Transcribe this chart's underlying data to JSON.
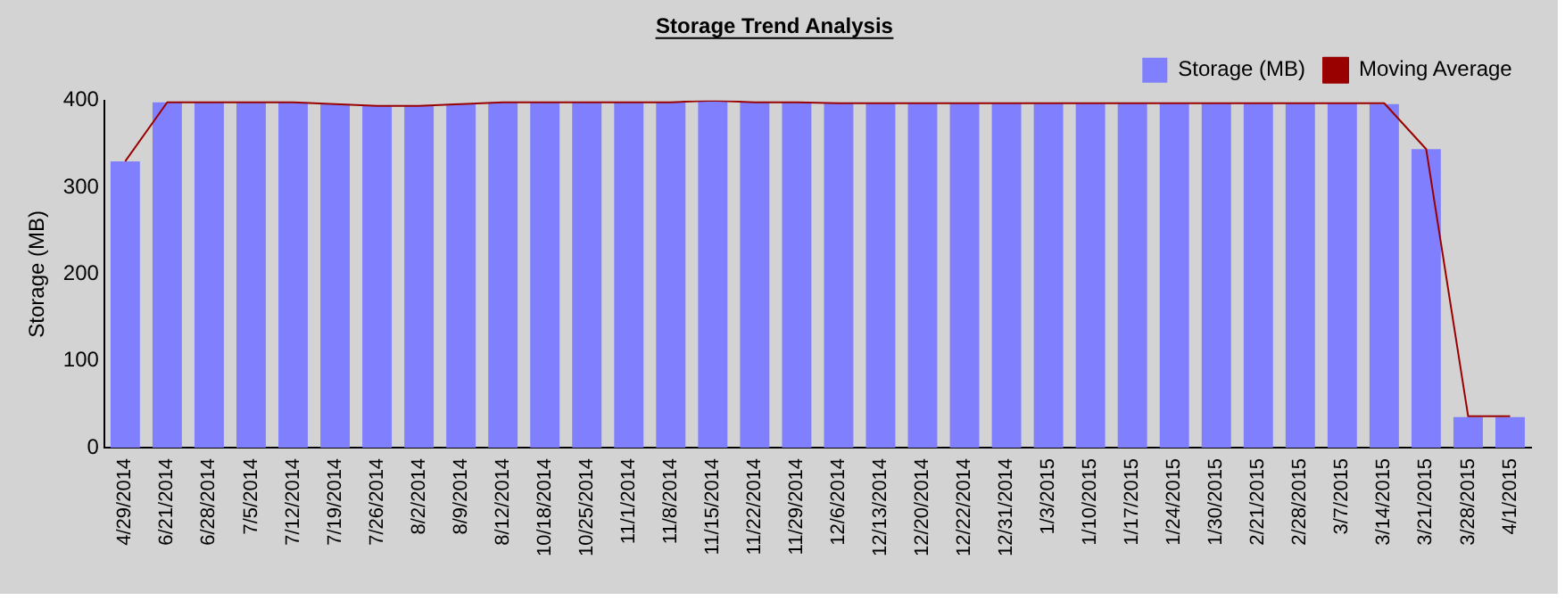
{
  "chart_data": {
    "type": "bar",
    "title": "Storage Trend Analysis",
    "ylabel": "Storage (MB)",
    "categories": [
      "4/29/2014",
      "6/21/2014",
      "6/28/2014",
      "7/5/2014",
      "7/12/2014",
      "7/19/2014",
      "7/26/2014",
      "8/2/2014",
      "8/9/2014",
      "8/12/2014",
      "10/18/2014",
      "10/25/2014",
      "11/1/2014",
      "11/8/2014",
      "11/15/2014",
      "11/22/2014",
      "11/29/2014",
      "12/6/2014",
      "12/13/2014",
      "12/20/2014",
      "12/22/2014",
      "12/31/2014",
      "1/3/2015",
      "1/10/2015",
      "1/17/2015",
      "1/24/2015",
      "1/30/2015",
      "2/21/2015",
      "2/28/2015",
      "3/7/2015",
      "3/14/2015",
      "3/21/2015",
      "3/28/2015",
      "4/1/2015"
    ],
    "series": [
      {
        "name": "Storage (MB)",
        "color": "#8080ff",
        "values": [
          330,
          398,
          398,
          398,
          398,
          396,
          394,
          394,
          396,
          398,
          398,
          398,
          398,
          398,
          400,
          398,
          398,
          397,
          397,
          397,
          397,
          397,
          397,
          397,
          397,
          397,
          397,
          397,
          397,
          397,
          396,
          344,
          35,
          35
        ]
      },
      {
        "name": "Moving Average",
        "type": "line",
        "color": "#990000",
        "values": [
          330,
          398,
          398,
          398,
          398,
          396,
          394,
          394,
          396,
          398,
          398,
          398,
          398,
          398,
          400,
          398,
          398,
          397,
          397,
          397,
          397,
          397,
          397,
          397,
          397,
          397,
          397,
          397,
          397,
          397,
          397,
          344,
          36,
          36
        ]
      }
    ],
    "ylim": [
      0,
      400
    ],
    "yticks": [
      0,
      100,
      200,
      300,
      400
    ],
    "grid": false,
    "legend": "top right",
    "marker": "none"
  }
}
